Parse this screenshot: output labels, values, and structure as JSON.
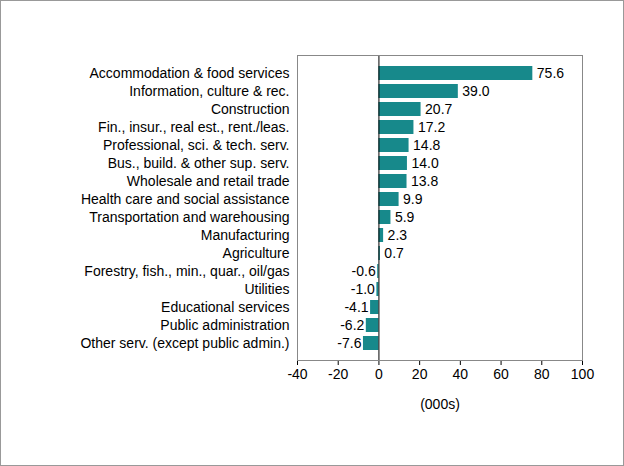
{
  "chart_data": {
    "type": "bar",
    "orientation": "horizontal",
    "categories": [
      "Accommodation & food services",
      "Information, culture & rec.",
      "Construction",
      "Fin., insur., real est., rent./leas.",
      "Professional, sci. & tech. serv.",
      "Bus., build. & other sup. serv.",
      "Wholesale and retail trade",
      "Health care and social assistance",
      "Transportation and warehousing",
      "Manufacturing",
      "Agriculture",
      "Forestry, fish., min., quar., oil/gas",
      "Utilities",
      "Educational services",
      "Public administration",
      "Other serv. (except public admin.)"
    ],
    "values": [
      75.6,
      39.0,
      20.7,
      17.2,
      14.8,
      14.0,
      13.8,
      9.9,
      5.9,
      2.3,
      0.7,
      -0.6,
      -1.0,
      -4.1,
      -6.2,
      -7.6
    ],
    "value_labels": [
      "75.6",
      "39.0",
      "20.7",
      "17.2",
      "14.8",
      "14.0",
      "13.8",
      "9.9",
      "5.9",
      "2.3",
      "0.7",
      "-0.6",
      "-1.0",
      "-4.1",
      "-6.2",
      "-7.6"
    ],
    "color": "#17898B",
    "x_label": "(000s)",
    "xlim": [
      -40,
      100
    ],
    "xticks": [
      -40,
      -20,
      0,
      20,
      40,
      60,
      80,
      100
    ],
    "grid": false,
    "data_labels": true
  }
}
